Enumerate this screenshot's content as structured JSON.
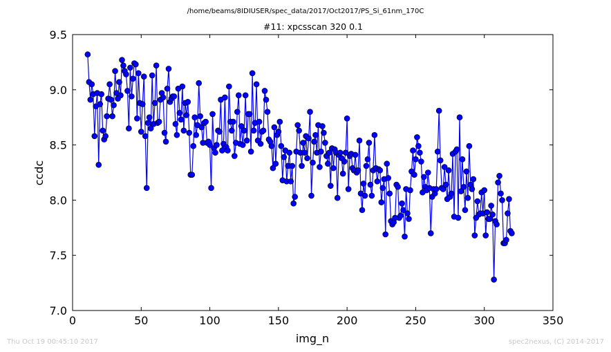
{
  "header": {
    "path": "/home/beams/8IDIUSER/spec_data/2017/Oct2017/PS_Si_61nm_170C"
  },
  "footer": {
    "timestamp": "Thu Oct 19 00:45:10 2017",
    "credit": "spec2nexus, (C) 2014-2017"
  },
  "colors": {
    "series": "#0000ff",
    "marker_edge": "#000000",
    "axes": "#000000",
    "footer_text": "#c8c8c8"
  },
  "chart_data": {
    "type": "line",
    "title": "#11: xpcsscan 320 0.1",
    "xlabel": "img_n",
    "ylabel": "ccdc",
    "xlim": [
      0,
      350
    ],
    "ylim": [
      7.0,
      9.5
    ],
    "xticks": [
      "0",
      "50",
      "100",
      "150",
      "200",
      "250",
      "300",
      "350"
    ],
    "yticks": [
      "7.0",
      "7.5",
      "8.0",
      "8.5",
      "9.0",
      "9.5"
    ],
    "grid": false,
    "legend": "none",
    "marker": "circle",
    "series": [
      {
        "x_start": 11,
        "x_step": 1,
        "values": [
          9.32,
          9.07,
          8.91,
          9.05,
          8.96,
          8.58,
          8.85,
          8.97,
          8.32,
          8.87,
          8.96,
          8.63,
          8.55,
          8.58,
          8.76,
          8.92,
          9.05,
          8.91,
          8.76,
          8.86,
          9.17,
          8.97,
          8.92,
          9.07,
          8.95,
          9.27,
          9.22,
          9.17,
          9.14,
          8.99,
          8.65,
          9.2,
          8.94,
          9.1,
          9.24,
          9.23,
          8.74,
          9.15,
          8.88,
          8.62,
          8.87,
          9.12,
          8.58,
          8.11,
          8.7,
          8.75,
          8.65,
          9.13,
          8.69,
          8.88,
          9.22,
          8.7,
          8.71,
          8.91,
          8.97,
          8.93,
          8.61,
          8.53,
          9.01,
          9.19,
          8.89,
          8.92,
          8.94,
          8.94,
          8.69,
          8.59,
          9.01,
          8.79,
          8.73,
          9.03,
          8.63,
          8.88,
          8.77,
          8.89,
          8.61,
          8.23,
          8.23,
          8.49,
          8.75,
          8.59,
          8.68,
          9.06,
          8.76,
          8.66,
          8.52,
          8.7,
          8.71,
          8.52,
          8.53,
          8.5,
          8.11,
          8.78,
          8.47,
          8.43,
          8.5,
          8.63,
          8.62,
          8.91,
          8.45,
          8.51,
          8.93,
          8.48,
          8.45,
          9.03,
          8.71,
          8.63,
          8.71,
          8.4,
          8.52,
          8.8,
          8.95,
          8.51,
          8.67,
          8.5,
          8.63,
          8.95,
          8.54,
          8.78,
          8.78,
          8.44,
          9.15,
          8.63,
          8.7,
          9.05,
          8.54,
          8.71,
          8.51,
          8.62,
          8.63,
          8.99,
          8.91,
          8.8,
          8.55,
          8.53,
          8.49,
          8.29,
          8.66,
          8.33,
          8.59,
          8.62,
          8.71,
          8.49,
          8.18,
          8.39,
          8.45,
          8.17,
          8.31,
          8.43,
          8.17,
          8.31,
          7.97,
          8.03,
          8.44,
          8.68,
          8.63,
          8.43,
          8.31,
          8.52,
          8.43,
          8.58,
          8.38,
          8.56,
          8.8,
          8.04,
          8.34,
          8.53,
          8.59,
          8.43,
          8.68,
          8.3,
          8.44,
          8.67,
          8.61,
          8.52,
          8.4,
          8.33,
          8.43,
          8.13,
          8.47,
          8.29,
          8.46,
          8.43,
          8.02,
          8.41,
          8.43,
          8.38,
          8.24,
          8.35,
          8.43,
          8.74,
          8.1,
          8.4,
          8.42,
          8.29,
          8.27,
          8.41,
          8.25,
          8.27,
          8.54,
          8.06,
          7.91,
          8.15,
          8.04,
          8.31,
          8.37,
          8.52,
          8.14,
          8.04,
          8.27,
          8.59,
          8.29,
          8.17,
          8.28,
          8.27,
          7.98,
          8.11,
          8.19,
          7.69,
          8.33,
          8.2,
          8.06,
          7.81,
          7.78,
          7.8,
          7.84,
          8.14,
          8.12,
          7.84,
          7.86,
          7.97,
          7.91,
          7.67,
          8.1,
          7.88,
          7.83,
          8.09,
          8.26,
          8.45,
          8.23,
          8.37,
          8.57,
          8.49,
          8.43,
          8.35,
          8.07,
          8.21,
          8.12,
          8.09,
          8.25,
          8.11,
          7.7,
          8.03,
          8.1,
          8.06,
          8.1,
          8.44,
          8.81,
          8.36,
          8.11,
          8.1,
          8.3,
          8.14,
          8.01,
          8.27,
          8.03,
          8.06,
          8.42,
          7.85,
          8.44,
          8.46,
          7.84,
          8.75,
          8.08,
          8.37,
          8.12,
          7.91,
          8.26,
          8.02,
          8.49,
          8.14,
          8.1,
          8.19,
          7.68,
          7.84,
          7.99,
          7.87,
          7.88,
          8.07,
          7.88,
          8.09,
          7.68,
          7.89,
          7.83,
          7.83,
          7.95,
          7.87,
          7.28,
          7.81,
          7.78,
          8.16,
          8.22,
          8.06,
          8.0,
          7.61,
          7.61,
          7.64,
          7.88,
          8.01,
          7.72,
          7.7
        ]
      }
    ]
  }
}
